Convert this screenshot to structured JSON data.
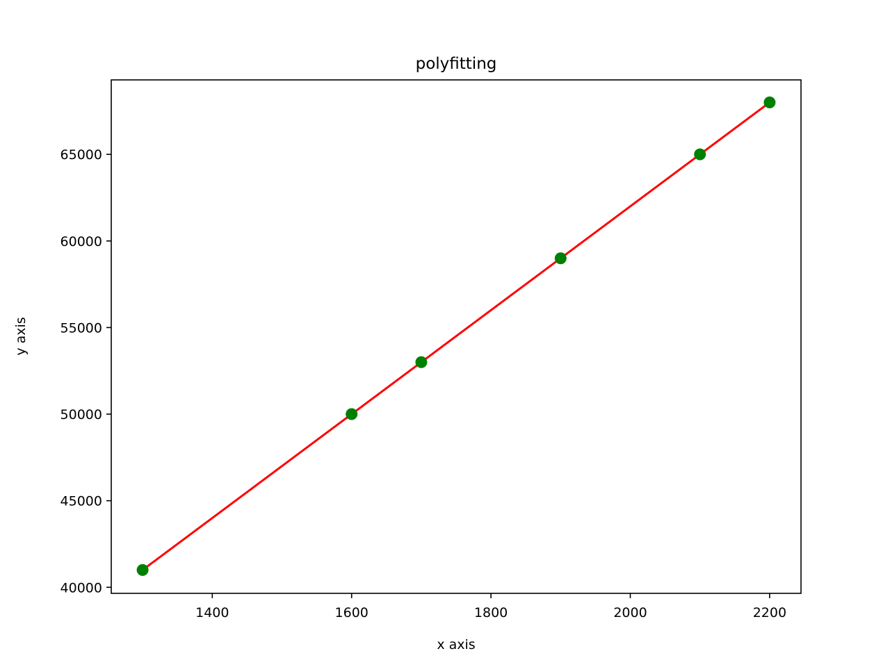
{
  "chart_data": {
    "type": "scatter",
    "title": "polyfitting",
    "xlabel": "x axis",
    "ylabel": "y axis",
    "xlim": [
      1255,
      2245
    ],
    "ylim": [
      39650,
      69300
    ],
    "x_ticks": [
      1400,
      1600,
      1800,
      2000,
      2200
    ],
    "y_ticks": [
      40000,
      45000,
      50000,
      55000,
      60000,
      65000
    ],
    "grid": false,
    "series": [
      {
        "kind": "points",
        "color": "#008000",
        "x": [
          1300,
          1600,
          1700,
          1900,
          2100,
          2200
        ],
        "y": [
          41000,
          50000,
          53000,
          59000,
          65000,
          68000
        ]
      },
      {
        "kind": "fit-line",
        "color": "#ff0000",
        "x": [
          1300,
          2200
        ],
        "y": [
          41000,
          68000
        ]
      }
    ]
  }
}
